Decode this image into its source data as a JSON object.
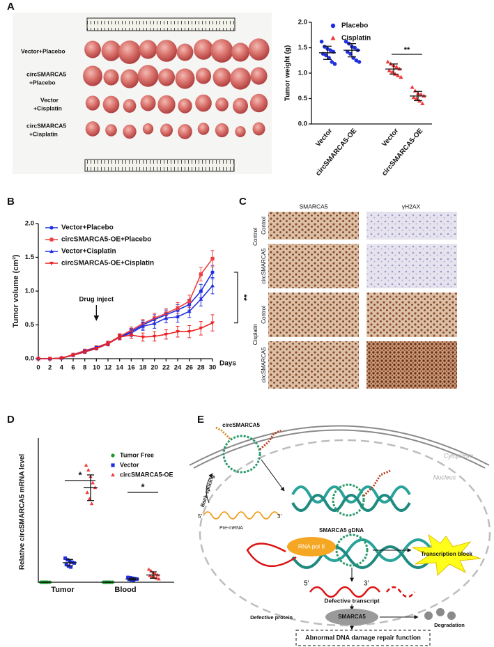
{
  "panel_labels": [
    "A",
    "B",
    "C",
    "D",
    "E"
  ],
  "photo": {
    "row_labels": [
      [
        "Vector+Placebo"
      ],
      [
        "circSMARCA5",
        "+Placebo"
      ],
      [
        "Vector",
        "+Cisplatin"
      ],
      [
        "circSMARCA5",
        "+Cisplatin"
      ]
    ]
  },
  "ihc": {
    "column_labels": [
      "SMARCA5",
      "γH2AX"
    ],
    "row_labels": [
      "Control",
      "circSMARCA5",
      "Control",
      "circSMARCA5"
    ],
    "group_labels": [
      "Control",
      "Cisplatin"
    ]
  },
  "chart_data": [
    {
      "type": "scatter",
      "ylabel": "Tumor weight (g)",
      "categories": [
        "Vector",
        "circSMARCA5-OE",
        "Vector",
        "circSMARCA5-OE"
      ],
      "ylim": [
        0,
        2
      ],
      "yticks": [
        {
          "value": 0,
          "label": "0.0"
        },
        {
          "value": 0.5,
          "label": "0.5"
        },
        {
          "value": 1,
          "label": "1.0"
        },
        {
          "value": 1.5,
          "label": "1.5"
        },
        {
          "value": 2,
          "label": "2.0"
        }
      ],
      "series": [
        {
          "name": "Placebo",
          "color": "#1f2fe0",
          "marker": "circle",
          "values": [
            [
              1.62,
              1.52,
              1.48,
              1.45,
              1.42,
              1.38,
              1.35,
              1.3,
              1.22,
              1.18
            ],
            [
              1.62,
              1.58,
              1.52,
              1.5,
              1.45,
              1.42,
              1.38,
              1.3,
              1.25,
              1.22
            ],
            null,
            null
          ],
          "mean": [
            1.4,
            1.45,
            null,
            null
          ],
          "sd": [
            0.13,
            0.13,
            null,
            null
          ]
        },
        {
          "name": "Cisplatin",
          "color": "#f03a3a",
          "marker": "triangle",
          "values": [
            null,
            null,
            [
              1.22,
              1.18,
              1.15,
              1.12,
              1.08,
              1.05,
              1.02,
              0.98,
              0.95,
              0.92
            ],
            [
              0.72,
              0.65,
              0.6,
              0.58,
              0.55,
              0.52,
              0.5,
              0.45,
              0.4
            ]
          ],
          "mean": [
            null,
            null,
            1.08,
            0.55
          ],
          "sd": [
            null,
            null,
            0.1,
            0.09
          ]
        }
      ],
      "annotations": [
        "**"
      ]
    },
    {
      "type": "line",
      "ylabel": "Tumor volume (cm³)",
      "xlabel": "Days",
      "x": [
        0,
        2,
        4,
        6,
        8,
        10,
        12,
        14,
        16,
        18,
        20,
        22,
        24,
        26,
        28,
        30
      ],
      "xlim": [
        0,
        30
      ],
      "xticks": [
        0,
        2,
        4,
        6,
        8,
        10,
        12,
        14,
        16,
        18,
        20,
        22,
        24,
        26,
        28,
        30
      ],
      "ylim": [
        0,
        2
      ],
      "yticks": [
        {
          "value": 0,
          "label": "0.0"
        },
        {
          "value": 0.5,
          "label": "0.5"
        },
        {
          "value": 1,
          "label": "1.0"
        },
        {
          "value": 1.5,
          "label": "1.5"
        },
        {
          "value": 2,
          "label": "2.0"
        }
      ],
      "series": [
        {
          "name": "Vector+Placebo",
          "color": "#1f2fe0",
          "marker": "circle",
          "values": [
            0,
            0,
            0.01,
            0.05,
            0.1,
            0.15,
            0.22,
            0.32,
            0.4,
            0.5,
            0.58,
            0.65,
            0.72,
            0.8,
            1.0,
            1.28
          ],
          "errors": [
            0,
            0,
            0,
            0.01,
            0.02,
            0.02,
            0.03,
            0.04,
            0.05,
            0.06,
            0.07,
            0.07,
            0.08,
            0.08,
            0.1,
            0.1
          ]
        },
        {
          "name": "circSMARCA5-OE+Placebo",
          "color": "#ec4040",
          "marker": "square",
          "values": [
            0,
            0,
            0.01,
            0.06,
            0.12,
            0.17,
            0.23,
            0.33,
            0.42,
            0.52,
            0.6,
            0.67,
            0.75,
            0.85,
            1.25,
            1.48
          ],
          "errors": [
            0,
            0,
            0,
            0.01,
            0.02,
            0.02,
            0.03,
            0.04,
            0.05,
            0.06,
            0.07,
            0.07,
            0.08,
            0.09,
            0.1,
            0.12
          ]
        },
        {
          "name": "Vector+Cisplatin",
          "color": "#1f2fe0",
          "marker": "triangle",
          "values": [
            0,
            0,
            0.01,
            0.05,
            0.11,
            0.16,
            0.22,
            0.32,
            0.38,
            0.48,
            0.52,
            0.6,
            0.62,
            0.7,
            0.88,
            1.08
          ],
          "errors": [
            0,
            0,
            0,
            0.01,
            0.02,
            0.02,
            0.03,
            0.04,
            0.05,
            0.06,
            0.07,
            0.07,
            0.08,
            0.09,
            0.1,
            0.12
          ]
        },
        {
          "name": "circSMARCA5-OE+Cisplatin",
          "color": "#ec2020",
          "marker": "triangle-down",
          "values": [
            0,
            0,
            0.01,
            0.05,
            0.1,
            0.15,
            0.22,
            0.32,
            0.35,
            0.32,
            0.33,
            0.36,
            0.4,
            0.4,
            0.45,
            0.53
          ],
          "errors": [
            0,
            0,
            0,
            0.01,
            0.02,
            0.02,
            0.03,
            0.04,
            0.05,
            0.06,
            0.07,
            0.07,
            0.08,
            0.09,
            0.1,
            0.12
          ]
        }
      ],
      "annotations": [
        "Drug inject",
        "**"
      ]
    },
    {
      "type": "scatter",
      "ylabel": "Relative circSMARCA5 mRNA  level",
      "categories": [
        "Tumor",
        "Blood"
      ],
      "ylim": [
        0,
        9
      ],
      "series": [
        {
          "name": "Tumor Free",
          "color": "#1a9a2a",
          "marker": "circle",
          "values": [
            [
              0,
              0,
              0,
              0,
              0,
              0,
              0,
              0
            ],
            [
              0,
              0,
              0,
              0,
              0,
              0,
              0,
              0
            ]
          ],
          "mean": [
            0,
            0
          ],
          "sd": [
            0,
            0
          ]
        },
        {
          "name": "Vector",
          "color": "#1f2fe0",
          "marker": "square",
          "values": [
            [
              1.5,
              1.4,
              1.35,
              1.25,
              1.2,
              1.1,
              1.0,
              0.95
            ],
            [
              0.3,
              0.28,
              0.25,
              0.22,
              0.2,
              0.18,
              0.15,
              0.12
            ]
          ],
          "mean": [
            1.22,
            0.2
          ],
          "sd": [
            0.2,
            0.06
          ]
        },
        {
          "name": "circSMARCA5-OE",
          "color": "#f03a3a",
          "marker": "triangle",
          "values": [
            [
              7.3,
              7.0,
              6.6,
              6.2,
              5.9,
              5.6,
              5.2,
              4.9
            ],
            [
              0.8,
              0.7,
              0.6,
              0.5,
              0.45,
              0.4,
              0.35,
              0.3,
              0.25,
              0.2
            ]
          ],
          "mean": [
            5.9,
            0.45
          ],
          "sd": [
            0.8,
            0.2
          ]
        }
      ],
      "annotations": [
        "*",
        "*"
      ]
    }
  ],
  "diagram": {
    "circ_label": "circSMARCA5",
    "cytoplasm": "Cytoplasm",
    "nucleus": "Nucleus",
    "back_splicing": "Back splicing",
    "pre_mrna_5": "5′",
    "pre_mrna": "Pre-mRNA",
    "pre_mrna_3": "3′",
    "gdna": "SMARCA5 gDNA",
    "rna_pol": "RNA pol II",
    "block": "Transcription block",
    "transcript_5": "5′",
    "transcript_3": "3′",
    "defective_transcript": "Defective transcript",
    "defective_protein": "Defective protein",
    "protein": "SMARCA5",
    "degradation": "Degradation",
    "outcome": "Abnormal DNA damage repair function"
  }
}
